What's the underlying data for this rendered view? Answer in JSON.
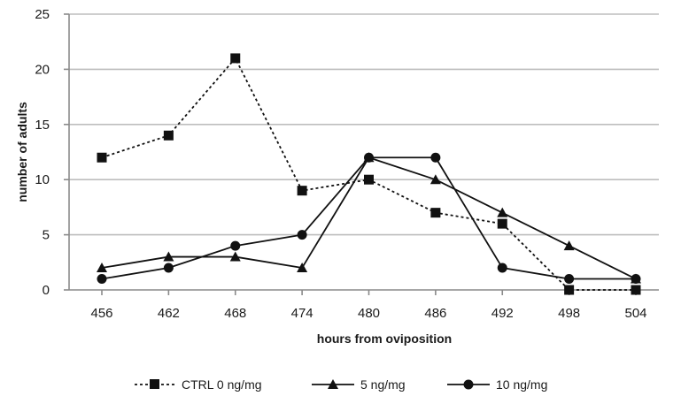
{
  "chart_data": {
    "type": "line",
    "title": "",
    "xlabel": "hours from oviposition",
    "ylabel": "number of adults",
    "x": [
      "456",
      "462",
      "468",
      "474",
      "480",
      "486",
      "492",
      "498",
      "504"
    ],
    "ylim": [
      0,
      25
    ],
    "yticks": [
      "0",
      "5",
      "10",
      "15",
      "20",
      "25"
    ],
    "grid": true,
    "legend_position": "bottom",
    "series": [
      {
        "name": "CTRL 0 ng/mg",
        "marker": "square",
        "line_style": "dotted",
        "color": "#111111",
        "values": [
          12,
          14,
          21,
          9,
          10,
          7,
          6,
          0,
          0
        ]
      },
      {
        "name": "5 ng/mg",
        "marker": "triangle",
        "line_style": "solid",
        "color": "#111111",
        "values": [
          2,
          3,
          3,
          2,
          12,
          10,
          7,
          4,
          1
        ]
      },
      {
        "name": "10 ng/mg",
        "marker": "circle",
        "line_style": "solid",
        "color": "#111111",
        "values": [
          1,
          2,
          4,
          5,
          12,
          12,
          2,
          1,
          1
        ]
      }
    ]
  }
}
